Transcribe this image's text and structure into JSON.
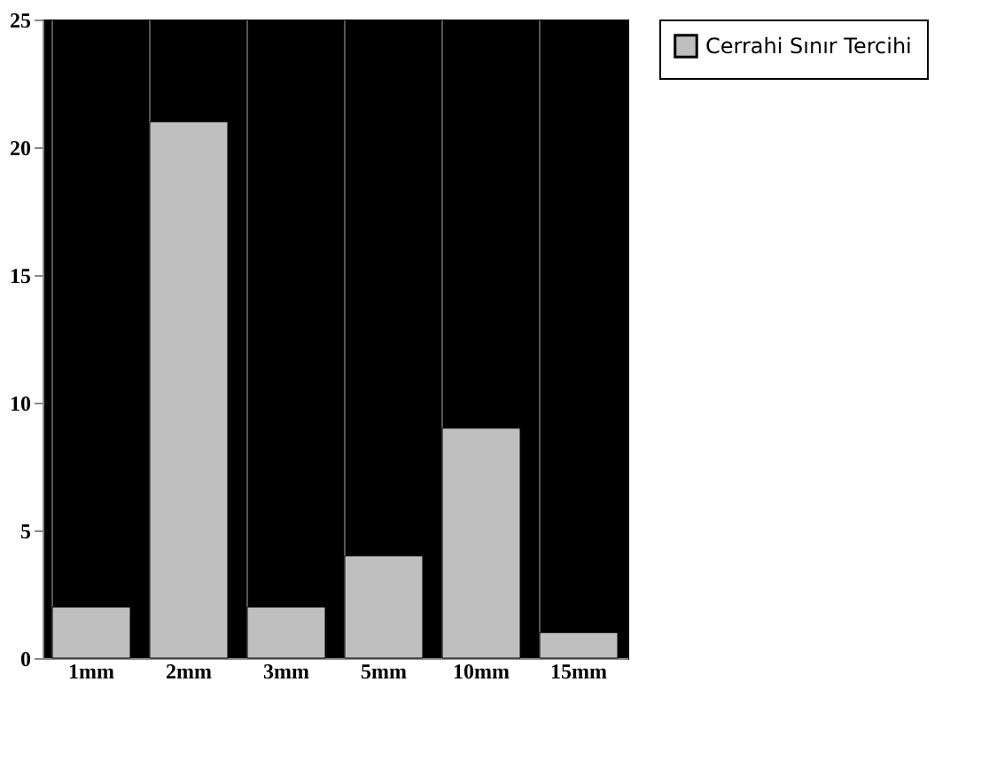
{
  "chart_data": {
    "type": "bar",
    "categories": [
      "1mm",
      "2mm",
      "3mm",
      "5mm",
      "10mm",
      "15mm"
    ],
    "series": [
      {
        "name": "Cerrahi Sınır Tercihi",
        "color": "#bfbfbf",
        "values": [
          2,
          21,
          2,
          4,
          9,
          1
        ]
      }
    ],
    "ylim": [
      0,
      25
    ],
    "yticks": [
      0,
      5,
      10,
      15,
      20,
      25
    ],
    "grid": "x",
    "legend": "right"
  }
}
